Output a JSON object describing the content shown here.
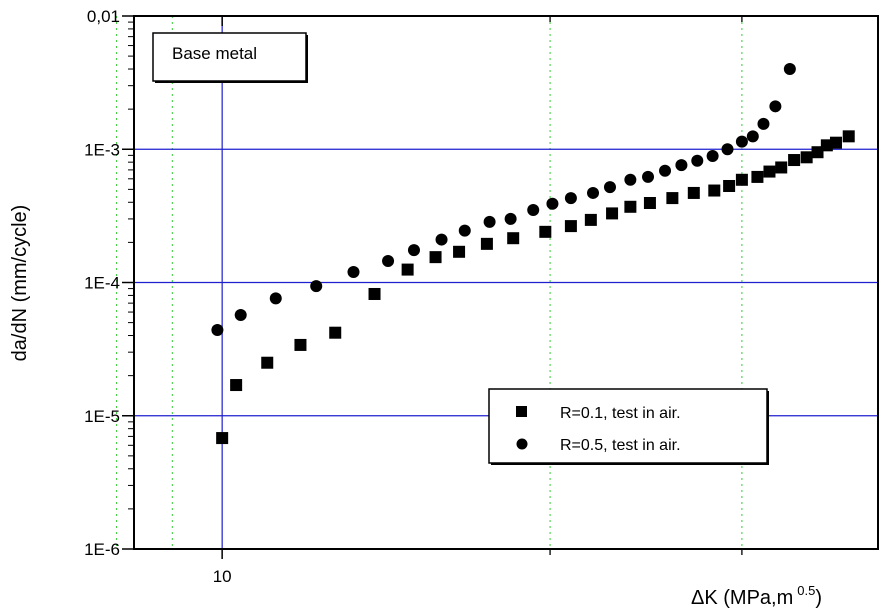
{
  "chart_data": {
    "type": "scatter",
    "xlabel": "ΔK (MPa,m",
    "xlabel_sup": "0.5",
    "xlabel_close": ")",
    "ylabel": "da/dN (mm/cycle)",
    "xscale": "log",
    "yscale": "log",
    "xlim": [
      8.3,
      40
    ],
    "ylim": [
      1e-06,
      0.01
    ],
    "x_tick_labels": [
      {
        "value": 10,
        "label": "10"
      }
    ],
    "x_minor_ticks": [
      20,
      30
    ],
    "x_gridlines_dotted": [
      8,
      9,
      20,
      30,
      40
    ],
    "y_tick_labels": [
      {
        "value": 1e-06,
        "label": "1E-6"
      },
      {
        "value": 1e-05,
        "label": "1E-5"
      },
      {
        "value": 0.0001,
        "label": "1E-4"
      },
      {
        "value": 0.001,
        "label": "1E-3"
      },
      {
        "value": 0.01,
        "label": "0,01"
      }
    ],
    "grid": true,
    "grid_colors": {
      "major": "#1f1fd0",
      "minor": "#33cc33"
    },
    "annotation": "Base metal",
    "legend_position": "lower-right",
    "series": [
      {
        "name": "R=0.1, test in air.",
        "marker": "square",
        "color": "#000000",
        "x": [
          10.0,
          10.3,
          11.0,
          11.8,
          12.7,
          13.8,
          14.8,
          15.7,
          16.5,
          17.5,
          18.5,
          19.8,
          20.9,
          21.8,
          22.8,
          23.7,
          24.7,
          25.9,
          27.1,
          28.3,
          29.2,
          30.0,
          31.0,
          31.8,
          32.6,
          33.5,
          34.4,
          35.2,
          35.9,
          36.6,
          37.6
        ],
        "y": [
          6.8e-06,
          1.7e-05,
          2.5e-05,
          3.4e-05,
          4.2e-05,
          8.2e-05,
          0.000125,
          0.000155,
          0.00017,
          0.000195,
          0.000215,
          0.00024,
          0.000265,
          0.000295,
          0.00033,
          0.00037,
          0.000395,
          0.00043,
          0.00047,
          0.00049,
          0.00053,
          0.00059,
          0.00062,
          0.00068,
          0.00073,
          0.00083,
          0.00087,
          0.00095,
          0.00107,
          0.00112,
          0.00125
        ]
      },
      {
        "name": "R=0.5, test in air.",
        "marker": "circle",
        "color": "#000000",
        "x": [
          9.9,
          10.4,
          11.2,
          12.2,
          13.2,
          14.2,
          15.0,
          15.9,
          16.7,
          17.6,
          18.4,
          19.3,
          20.1,
          20.9,
          21.9,
          22.7,
          23.7,
          24.6,
          25.5,
          26.4,
          27.3,
          28.2,
          29.1,
          30.0,
          30.7,
          31.4,
          32.2,
          33.2
        ],
        "y": [
          4.4e-05,
          5.7e-05,
          7.6e-05,
          9.4e-05,
          0.00012,
          0.000145,
          0.000175,
          0.00021,
          0.000245,
          0.000285,
          0.0003,
          0.00035,
          0.00039,
          0.00043,
          0.00047,
          0.00052,
          0.00059,
          0.00062,
          0.00069,
          0.00076,
          0.00082,
          0.00089,
          0.001,
          0.00114,
          0.00125,
          0.00155,
          0.0021,
          0.004
        ]
      }
    ]
  }
}
